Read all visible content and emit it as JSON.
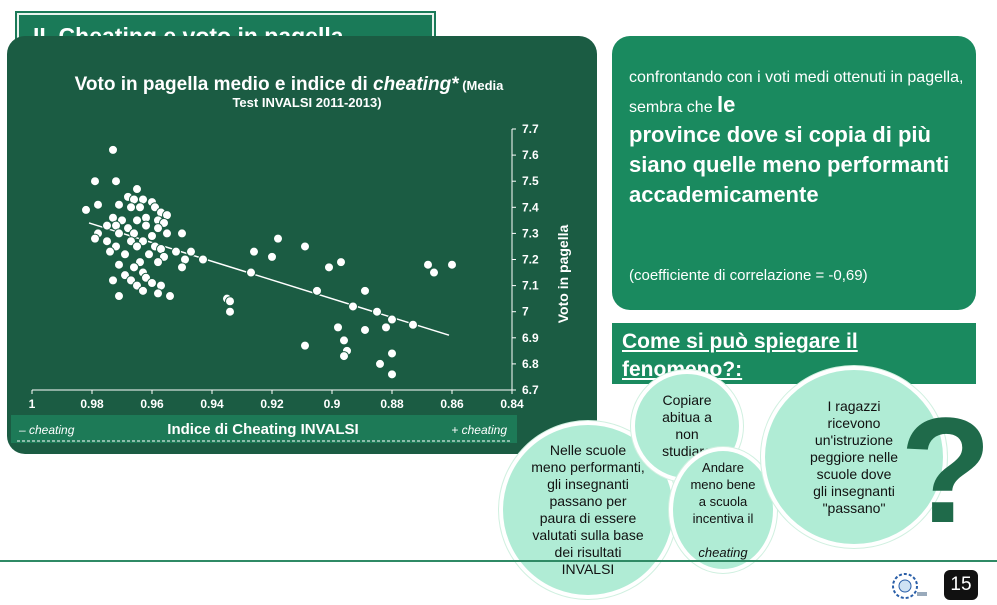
{
  "slide": {
    "title": "II. Cheating e voto in pagella",
    "page_number": "15",
    "logo_icon": "institution-logo-icon"
  },
  "chart_data": {
    "type": "scatter",
    "title": "Voto in pagella medio e indice di cheating* (Media Test  INVALSI 2011-2013)",
    "title_parts": {
      "line1_prefix": "Voto in pagella medio e indice di ",
      "line1_italic": "cheating*",
      "line1_suffix": " (Media",
      "line2": "Test  INVALSI 2011-2013)"
    },
    "xlabel": "Indice di Cheating INVALSI",
    "ylabel": "Voto in pagella",
    "x_left_note": "– cheating",
    "x_right_note": "+ cheating",
    "xlim": [
      1.0,
      0.84
    ],
    "ylim": [
      6.7,
      7.7
    ],
    "x_reversed": true,
    "x_ticks": [
      "1",
      "0.98",
      "0.96",
      "0.94",
      "0.92",
      "0.9",
      "0.88",
      "0.86",
      "0.84"
    ],
    "y_ticks": [
      "6.7",
      "6.8",
      "6.9",
      "7",
      "7.1",
      "7.2",
      "7.3",
      "7.4",
      "7.5",
      "7.6",
      "7.7"
    ],
    "trendline": {
      "x": [
        0.981,
        0.861
      ],
      "y": [
        7.34,
        6.91
      ]
    },
    "points": [
      {
        "x": 0.973,
        "y": 7.62
      },
      {
        "x": 0.979,
        "y": 7.5
      },
      {
        "x": 0.972,
        "y": 7.5
      },
      {
        "x": 0.965,
        "y": 7.47
      },
      {
        "x": 0.968,
        "y": 7.44
      },
      {
        "x": 0.966,
        "y": 7.43
      },
      {
        "x": 0.963,
        "y": 7.43
      },
      {
        "x": 0.96,
        "y": 7.42
      },
      {
        "x": 0.982,
        "y": 7.39
      },
      {
        "x": 0.978,
        "y": 7.41
      },
      {
        "x": 0.971,
        "y": 7.41
      },
      {
        "x": 0.967,
        "y": 7.4
      },
      {
        "x": 0.964,
        "y": 7.4
      },
      {
        "x": 0.959,
        "y": 7.4
      },
      {
        "x": 0.957,
        "y": 7.38
      },
      {
        "x": 0.955,
        "y": 7.37
      },
      {
        "x": 0.973,
        "y": 7.36
      },
      {
        "x": 0.97,
        "y": 7.35
      },
      {
        "x": 0.965,
        "y": 7.35
      },
      {
        "x": 0.962,
        "y": 7.36
      },
      {
        "x": 0.958,
        "y": 7.35
      },
      {
        "x": 0.956,
        "y": 7.34
      },
      {
        "x": 0.975,
        "y": 7.33
      },
      {
        "x": 0.972,
        "y": 7.33
      },
      {
        "x": 0.968,
        "y": 7.32
      },
      {
        "x": 0.962,
        "y": 7.33
      },
      {
        "x": 0.958,
        "y": 7.32
      },
      {
        "x": 0.955,
        "y": 7.3
      },
      {
        "x": 0.95,
        "y": 7.3
      },
      {
        "x": 0.978,
        "y": 7.3
      },
      {
        "x": 0.971,
        "y": 7.3
      },
      {
        "x": 0.966,
        "y": 7.3
      },
      {
        "x": 0.96,
        "y": 7.29
      },
      {
        "x": 0.963,
        "y": 7.27
      },
      {
        "x": 0.967,
        "y": 7.27
      },
      {
        "x": 0.975,
        "y": 7.27
      },
      {
        "x": 0.979,
        "y": 7.28
      },
      {
        "x": 0.972,
        "y": 7.25
      },
      {
        "x": 0.965,
        "y": 7.25
      },
      {
        "x": 0.959,
        "y": 7.25
      },
      {
        "x": 0.957,
        "y": 7.24
      },
      {
        "x": 0.952,
        "y": 7.23
      },
      {
        "x": 0.947,
        "y": 7.23
      },
      {
        "x": 0.974,
        "y": 7.23
      },
      {
        "x": 0.969,
        "y": 7.22
      },
      {
        "x": 0.961,
        "y": 7.22
      },
      {
        "x": 0.956,
        "y": 7.21
      },
      {
        "x": 0.949,
        "y": 7.2
      },
      {
        "x": 0.943,
        "y": 7.2
      },
      {
        "x": 0.964,
        "y": 7.19
      },
      {
        "x": 0.958,
        "y": 7.19
      },
      {
        "x": 0.971,
        "y": 7.18
      },
      {
        "x": 0.966,
        "y": 7.17
      },
      {
        "x": 0.95,
        "y": 7.17
      },
      {
        "x": 0.963,
        "y": 7.15
      },
      {
        "x": 0.969,
        "y": 7.14
      },
      {
        "x": 0.962,
        "y": 7.13
      },
      {
        "x": 0.973,
        "y": 7.12
      },
      {
        "x": 0.967,
        "y": 7.12
      },
      {
        "x": 0.96,
        "y": 7.11
      },
      {
        "x": 0.965,
        "y": 7.1
      },
      {
        "x": 0.957,
        "y": 7.1
      },
      {
        "x": 0.963,
        "y": 7.08
      },
      {
        "x": 0.958,
        "y": 7.07
      },
      {
        "x": 0.971,
        "y": 7.06
      },
      {
        "x": 0.954,
        "y": 7.06
      },
      {
        "x": 0.935,
        "y": 7.05
      },
      {
        "x": 0.934,
        "y": 7.04
      },
      {
        "x": 0.934,
        "y": 7.0
      },
      {
        "x": 0.926,
        "y": 7.23
      },
      {
        "x": 0.918,
        "y": 7.28
      },
      {
        "x": 0.92,
        "y": 7.21
      },
      {
        "x": 0.927,
        "y": 7.15
      },
      {
        "x": 0.909,
        "y": 7.25
      },
      {
        "x": 0.897,
        "y": 7.19
      },
      {
        "x": 0.901,
        "y": 7.17
      },
      {
        "x": 0.905,
        "y": 7.08
      },
      {
        "x": 0.889,
        "y": 7.08
      },
      {
        "x": 0.893,
        "y": 7.02
      },
      {
        "x": 0.885,
        "y": 7.0
      },
      {
        "x": 0.88,
        "y": 6.97
      },
      {
        "x": 0.873,
        "y": 6.95
      },
      {
        "x": 0.882,
        "y": 6.94
      },
      {
        "x": 0.898,
        "y": 6.94
      },
      {
        "x": 0.889,
        "y": 6.93
      },
      {
        "x": 0.896,
        "y": 6.89
      },
      {
        "x": 0.909,
        "y": 6.87
      },
      {
        "x": 0.895,
        "y": 6.85
      },
      {
        "x": 0.896,
        "y": 6.83
      },
      {
        "x": 0.88,
        "y": 6.84
      },
      {
        "x": 0.884,
        "y": 6.8
      },
      {
        "x": 0.88,
        "y": 6.76
      },
      {
        "x": 0.868,
        "y": 7.18
      },
      {
        "x": 0.866,
        "y": 7.15
      },
      {
        "x": 0.86,
        "y": 7.18
      }
    ]
  },
  "right_box": {
    "intro": "confrontando con i voti medi ottenuti in pagella, sembra che ",
    "emphasis_lead": "le",
    "emphasis": "province dove si copia di più siano quelle meno performanti accademicamente",
    "coefficient": "(coefficiente di correlazione = -0,69)"
  },
  "question": "Come si può spiegare il fenomeno?:",
  "bubbles": {
    "b1": "Copiare\nabitua a\nnon\nstudiare",
    "b2": "I ragazzi\nricevono\nun'istruzione\npeggiore nelle\nscuole dove\ngli insegnanti\n\"passano\"",
    "b3": "Nelle scuole\nmeno performanti,\ngli insegnanti\npassano per\npaura di essere\nvalutati sulla base\ndei risultati\nINVALSI",
    "b4_line1": "Andare\nmeno bene\na scuola\nincentiva il",
    "b4_italic": "cheating"
  },
  "decor": {
    "question_mark": "?",
    "question_mark_icon": "question-mark-icon"
  },
  "colors": {
    "panel": "#1b5c43",
    "accent": "#1a8a5f",
    "bubble": "#b0ecd5"
  }
}
